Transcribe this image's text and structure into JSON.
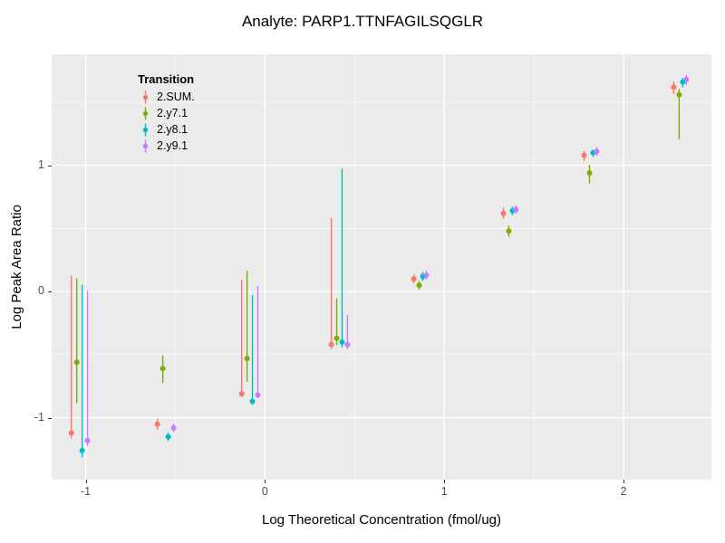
{
  "chart_data": {
    "type": "pointrange-scatter",
    "title": "Analyte: PARP1.TTNFAGILSQGLR",
    "xlabel": "Log Theoretical Concentration (fmol/ug)",
    "ylabel": "Log Peak Area Ratio",
    "legend_title": "Transition",
    "xlim": [
      -1.19,
      2.49
    ],
    "ylim": [
      -1.49,
      1.88
    ],
    "x_ticks": [
      -1,
      0,
      1,
      2
    ],
    "y_ticks": [
      -1,
      0,
      1
    ],
    "x_tick_labels": [
      "-1",
      "0",
      "1",
      "2"
    ],
    "y_tick_labels": [
      "-1",
      "0",
      "1"
    ],
    "x_minor": [
      -0.5,
      0.5,
      1.5
    ],
    "y_minor": [
      -0.5,
      0.5,
      1.5
    ],
    "panel_bg": "#EBEBEB",
    "grid_color": "#FFFFFF",
    "series": [
      {
        "name": "2.SUM.",
        "color": "#F8766D",
        "points": [
          {
            "x": -1.08,
            "y": -1.12,
            "lo": -1.16,
            "hi": 0.12
          },
          {
            "x": -0.6,
            "y": -1.05,
            "lo": -1.09,
            "hi": -1.01
          },
          {
            "x": -0.13,
            "y": -0.81,
            "lo": -0.83,
            "hi": 0.09
          },
          {
            "x": 0.37,
            "y": -0.42,
            "lo": -0.45,
            "hi": 0.58
          },
          {
            "x": 0.83,
            "y": 0.1,
            "lo": 0.07,
            "hi": 0.13
          },
          {
            "x": 1.33,
            "y": 0.62,
            "lo": 0.58,
            "hi": 0.66
          },
          {
            "x": 1.78,
            "y": 1.08,
            "lo": 1.04,
            "hi": 1.11
          },
          {
            "x": 2.28,
            "y": 1.62,
            "lo": 1.57,
            "hi": 1.66
          }
        ]
      },
      {
        "name": "2.y7.1",
        "color": "#7CAE00",
        "points": [
          {
            "x": -1.05,
            "y": -0.56,
            "lo": -0.88,
            "hi": 0.1
          },
          {
            "x": -0.57,
            "y": -0.61,
            "lo": -0.72,
            "hi": -0.51
          },
          {
            "x": -0.1,
            "y": -0.53,
            "lo": -0.71,
            "hi": 0.16
          },
          {
            "x": 0.4,
            "y": -0.37,
            "lo": -0.42,
            "hi": -0.06
          },
          {
            "x": 0.86,
            "y": 0.05,
            "lo": 0.02,
            "hi": 0.08
          },
          {
            "x": 1.36,
            "y": 0.48,
            "lo": 0.44,
            "hi": 0.52
          },
          {
            "x": 1.81,
            "y": 0.94,
            "lo": 0.86,
            "hi": 1.0
          },
          {
            "x": 2.31,
            "y": 1.56,
            "lo": 1.21,
            "hi": 1.6
          }
        ]
      },
      {
        "name": "2.y8.1",
        "color": "#00BFC4",
        "points": [
          {
            "x": -1.02,
            "y": -1.26,
            "lo": -1.31,
            "hi": 0.05
          },
          {
            "x": -0.54,
            "y": -1.15,
            "lo": -1.18,
            "hi": -1.12
          },
          {
            "x": -0.07,
            "y": -0.87,
            "lo": -0.89,
            "hi": -0.03
          },
          {
            "x": 0.43,
            "y": -0.4,
            "lo": -0.44,
            "hi": 0.97
          },
          {
            "x": 0.88,
            "y": 0.12,
            "lo": 0.09,
            "hi": 0.15
          },
          {
            "x": 1.38,
            "y": 0.64,
            "lo": 0.61,
            "hi": 0.67
          },
          {
            "x": 1.83,
            "y": 1.1,
            "lo": 1.07,
            "hi": 1.12
          },
          {
            "x": 2.33,
            "y": 1.66,
            "lo": 1.62,
            "hi": 1.69
          }
        ]
      },
      {
        "name": "2.y9.1",
        "color": "#C77CFF",
        "points": [
          {
            "x": -0.99,
            "y": -1.18,
            "lo": -1.22,
            "hi": 0.0
          },
          {
            "x": -0.51,
            "y": -1.08,
            "lo": -1.11,
            "hi": -1.05
          },
          {
            "x": -0.04,
            "y": -0.82,
            "lo": -0.84,
            "hi": 0.04
          },
          {
            "x": 0.46,
            "y": -0.42,
            "lo": -0.45,
            "hi": -0.19
          },
          {
            "x": 0.9,
            "y": 0.13,
            "lo": 0.1,
            "hi": 0.16
          },
          {
            "x": 1.4,
            "y": 0.65,
            "lo": 0.62,
            "hi": 0.68
          },
          {
            "x": 1.85,
            "y": 1.11,
            "lo": 1.08,
            "hi": 1.14
          },
          {
            "x": 2.35,
            "y": 1.68,
            "lo": 1.64,
            "hi": 1.71
          }
        ]
      }
    ]
  }
}
